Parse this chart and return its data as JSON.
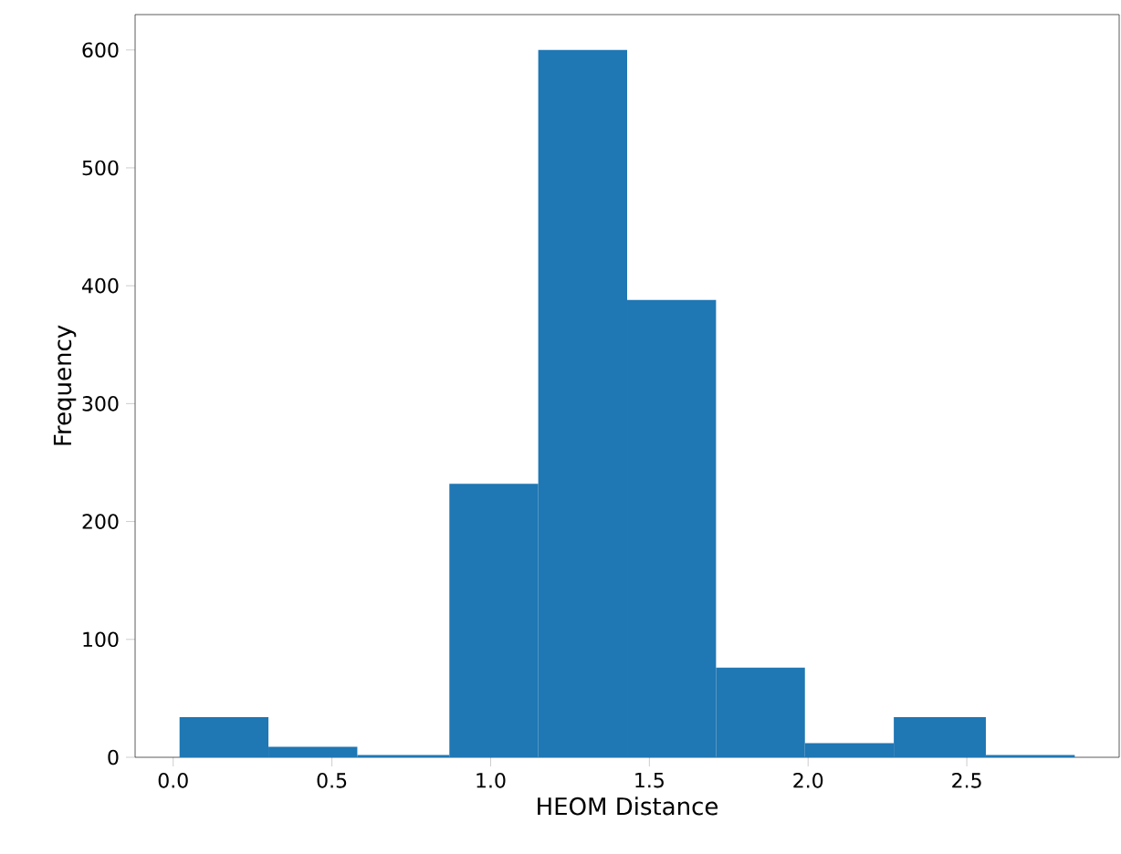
{
  "chart_data": {
    "type": "histogram",
    "xlabel": "HEOM Distance",
    "ylabel": "Frequency",
    "color": "#1f77b4",
    "bins": [
      0.02,
      0.3,
      0.58,
      0.87,
      1.15,
      1.43,
      1.71,
      1.99,
      2.27,
      2.56,
      2.84
    ],
    "values": [
      34,
      9,
      2,
      232,
      600,
      388,
      76,
      12,
      34,
      2
    ],
    "xlim": [
      -0.12,
      2.98
    ],
    "ylim": [
      0,
      630
    ],
    "xticks": [
      {
        "value": 0,
        "label": "0.0"
      },
      0.5,
      {
        "value": 1,
        "label": "1.0"
      },
      1.5,
      {
        "value": 2,
        "label": "2.0"
      },
      2.5
    ],
    "yticks": [
      0,
      100,
      200,
      300,
      400,
      500,
      600
    ]
  }
}
